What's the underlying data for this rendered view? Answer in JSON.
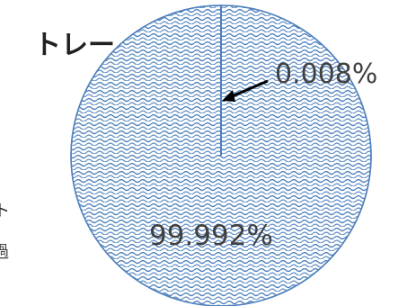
{
  "chart_data": {
    "type": "pie",
    "categories": [
      "トレー",
      ""
    ],
    "values": [
      0.008,
      99.992
    ],
    "data_labels": [
      "0.008%",
      "99.992%"
    ],
    "category_label": "トレー",
    "left_edge_fragments": [
      "ト",
      "過"
    ],
    "colors": {
      "pattern_stroke": "#4f81bd",
      "slice_outline": "#4f81bd",
      "background": "#ffffff",
      "label_text": "#404040",
      "category_text": "#202020",
      "arrow": "#000000"
    }
  }
}
